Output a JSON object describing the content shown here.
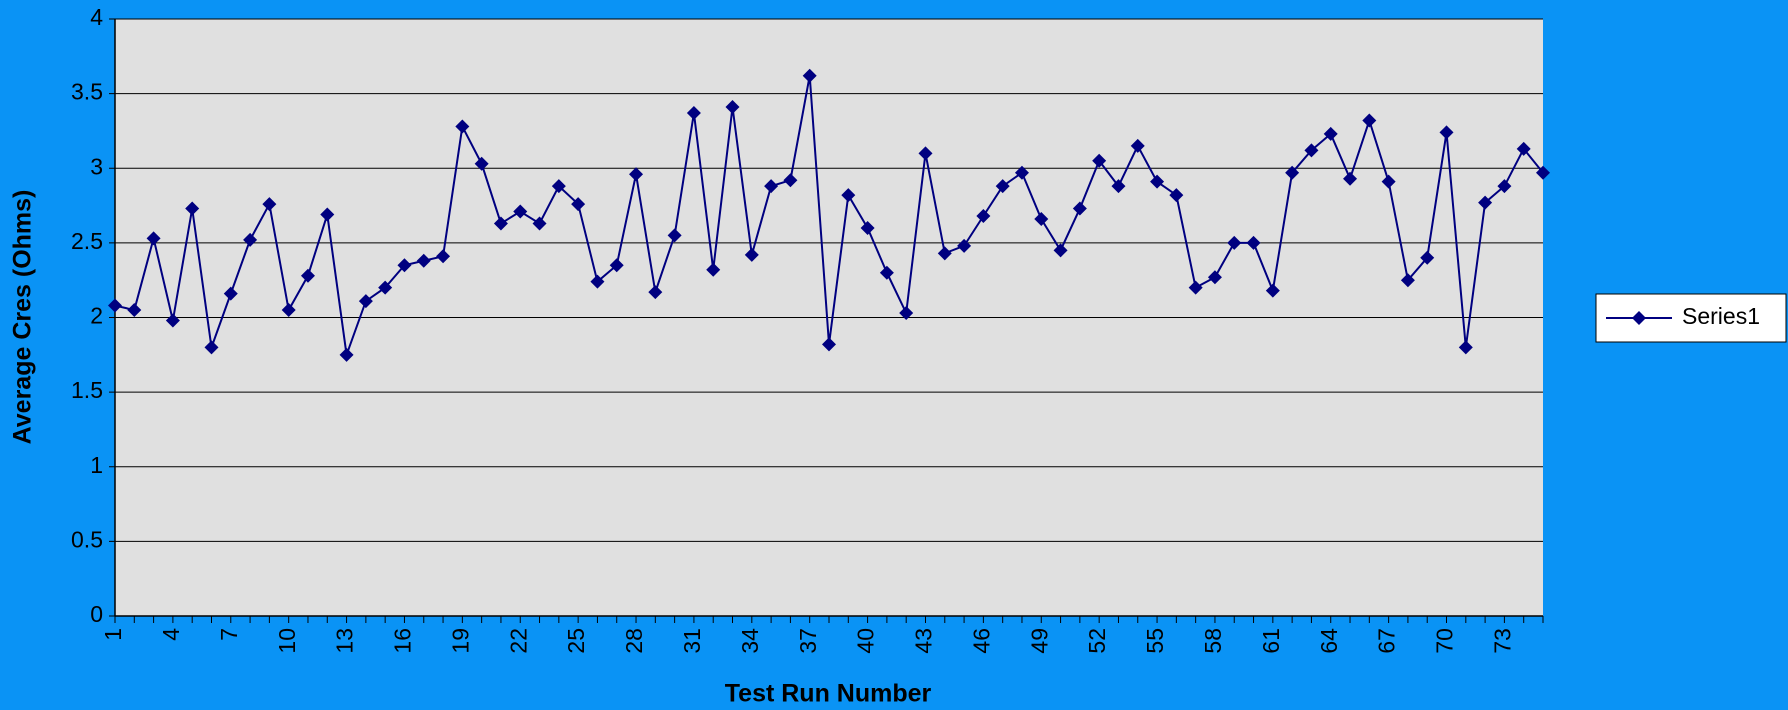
{
  "chart_data": {
    "type": "line",
    "xlabel": "Test Run Number",
    "ylabel": "Average Cres (Ohms)",
    "categories": [
      "1",
      null,
      null,
      "4",
      null,
      null,
      "7",
      null,
      null,
      "10",
      null,
      null,
      "13",
      null,
      null,
      "16",
      null,
      null,
      "19",
      null,
      null,
      "22",
      null,
      null,
      "25",
      null,
      null,
      "28",
      null,
      null,
      "31",
      null,
      null,
      "34",
      null,
      null,
      "37",
      null,
      null,
      "40",
      null,
      null,
      "43",
      null,
      null,
      "46",
      null,
      null,
      "49",
      null,
      null,
      "52",
      null,
      null,
      "55",
      null,
      null,
      "58",
      null,
      null,
      "61",
      null,
      null,
      "64",
      null,
      null,
      "67",
      null,
      null,
      "70",
      null,
      null,
      "73",
      null,
      null
    ],
    "series": [
      {
        "name": "Series1",
        "color": "#000080",
        "values": [
          2.08,
          2.05,
          2.53,
          1.98,
          2.73,
          1.8,
          2.16,
          2.52,
          2.76,
          2.05,
          2.28,
          2.69,
          1.75,
          2.11,
          2.2,
          2.35,
          2.38,
          2.41,
          3.28,
          3.03,
          2.63,
          2.71,
          2.63,
          2.88,
          2.76,
          2.24,
          2.35,
          2.96,
          2.17,
          2.55,
          3.37,
          2.32,
          3.41,
          2.42,
          2.88,
          2.92,
          3.62,
          1.82,
          2.82,
          2.6,
          2.3,
          2.03,
          3.1,
          2.43,
          2.48,
          2.68,
          2.88,
          2.97,
          2.66,
          2.45,
          2.73,
          3.05,
          2.88,
          3.15,
          2.91,
          2.82,
          2.2,
          2.27,
          2.5,
          2.5,
          2.18,
          2.97,
          3.12,
          3.23,
          2.93,
          3.32,
          2.91,
          2.25,
          2.4,
          3.24,
          1.8,
          2.77,
          2.88,
          3.13,
          2.97
        ]
      }
    ],
    "ylim": [
      0,
      4
    ],
    "yticks": [
      0,
      0.5,
      1,
      1.5,
      2,
      2.5,
      3,
      3.5,
      4
    ],
    "grid": true,
    "legend": "right"
  }
}
